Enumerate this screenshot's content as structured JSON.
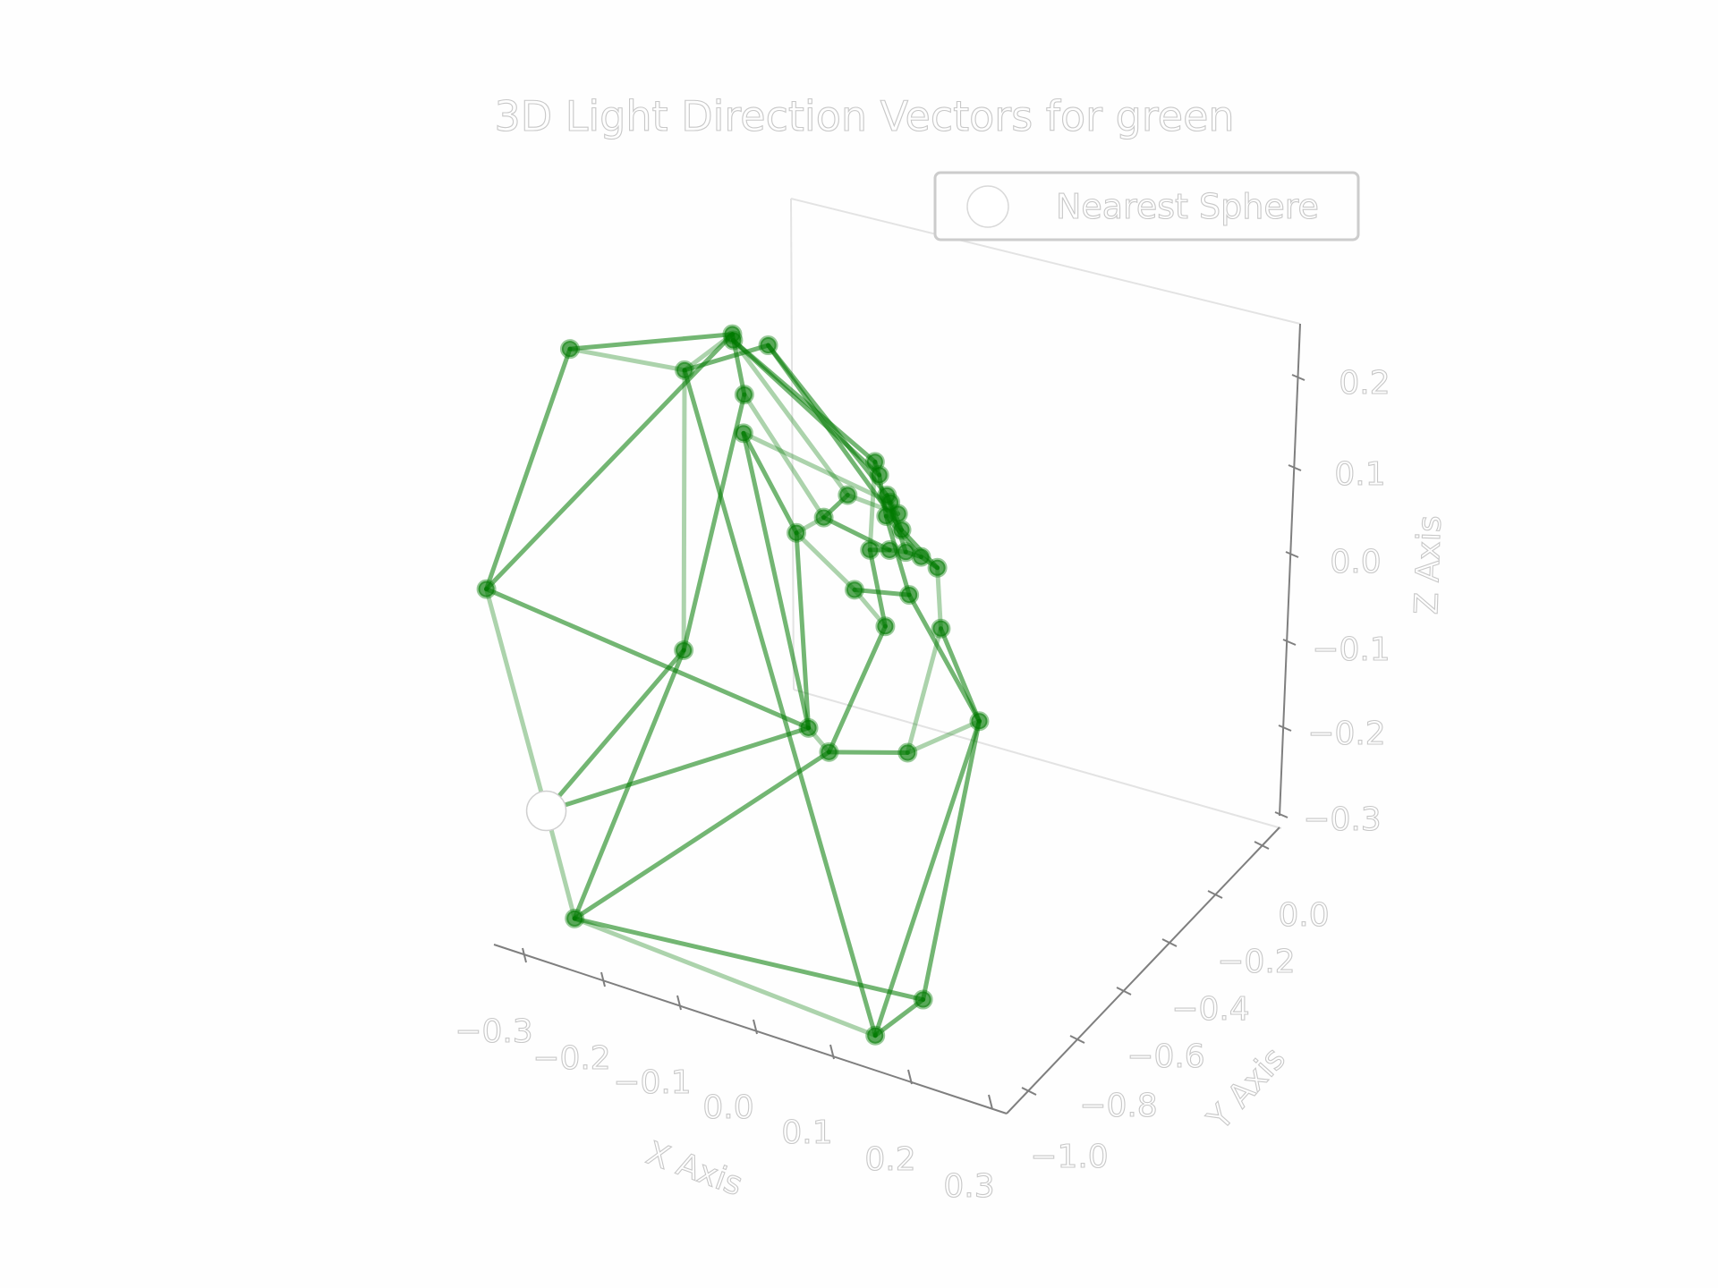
{
  "chart_data": {
    "type": "scatter3d",
    "title": "3D Light Direction Vectors for green",
    "xlabel": "X Axis",
    "ylabel": "Y Axis",
    "zlabel": "Z Axis",
    "xlim": [
      -0.35,
      0.35
    ],
    "ylim": [
      -1.05,
      0.1
    ],
    "zlim": [
      -0.32,
      0.26
    ],
    "x_ticks": [
      "−0.3",
      "−0.2",
      "−0.1",
      "0.0",
      "0.1",
      "0.2",
      "0.3"
    ],
    "y_ticks": [
      "0.0",
      "−0.2",
      "−0.4",
      "−0.6",
      "−0.8",
      "−1.0"
    ],
    "z_ticks": [
      "0.2",
      "0.1",
      "0.0",
      "−0.1",
      "−0.2",
      "−0.3"
    ],
    "legend": {
      "label": "Nearest Sphere",
      "placement": "top-right"
    },
    "colors": {
      "points": "#007a00",
      "highlight": "#ffffff",
      "text": "#c8c8c8",
      "pane": "#e6e6e6"
    },
    "nodes": [
      {
        "x": -0.28,
        "y": -0.48,
        "z": 0.22
      },
      {
        "x": -0.12,
        "y": -0.52,
        "z": 0.25
      },
      {
        "x": -0.08,
        "y": -0.44,
        "z": 0.28
      },
      {
        "x": -0.09,
        "y": -0.4,
        "z": 0.26
      },
      {
        "x": -0.05,
        "y": -0.38,
        "z": 0.26
      },
      {
        "x": -0.07,
        "y": -0.42,
        "z": 0.21
      },
      {
        "x": -0.06,
        "y": -0.46,
        "z": 0.18
      },
      {
        "x": -0.3,
        "y": -0.8,
        "z": 0.03
      },
      {
        "x": 0.05,
        "y": -0.24,
        "z": 0.12
      },
      {
        "x": 0.05,
        "y": -0.22,
        "z": 0.1
      },
      {
        "x": 0.06,
        "y": -0.22,
        "z": 0.08
      },
      {
        "x": 0.07,
        "y": -0.24,
        "z": 0.08
      },
      {
        "x": 0.07,
        "y": -0.26,
        "z": 0.07
      },
      {
        "x": 0.08,
        "y": -0.24,
        "z": 0.07
      },
      {
        "x": 0.09,
        "y": -0.26,
        "z": 0.06
      },
      {
        "x": 0.02,
        "y": -0.26,
        "z": 0.08
      },
      {
        "x": 0.0,
        "y": -0.3,
        "z": 0.06
      },
      {
        "x": -0.03,
        "y": -0.32,
        "z": 0.04
      },
      {
        "x": 0.06,
        "y": -0.3,
        "z": 0.04
      },
      {
        "x": 0.08,
        "y": -0.28,
        "z": 0.04
      },
      {
        "x": 0.09,
        "y": -0.24,
        "z": 0.03
      },
      {
        "x": 0.11,
        "y": -0.24,
        "z": 0.03
      },
      {
        "x": 0.12,
        "y": -0.2,
        "z": 0.01
      },
      {
        "x": 0.1,
        "y": -0.26,
        "z": -0.01
      },
      {
        "x": 0.04,
        "y": -0.3,
        "z": -0.01
      },
      {
        "x": 0.08,
        "y": -0.3,
        "z": -0.04
      },
      {
        "x": 0.13,
        "y": -0.22,
        "z": -0.05
      },
      {
        "x": -0.11,
        "y": -0.56,
        "z": -0.05
      },
      {
        "x": 0.03,
        "y": -0.48,
        "z": -0.12
      },
      {
        "x": 0.04,
        "y": -0.42,
        "z": -0.16
      },
      {
        "x": 0.12,
        "y": -0.34,
        "z": -0.16
      },
      {
        "x": 0.18,
        "y": -0.22,
        "z": -0.14
      },
      {
        "x": -0.13,
        "y": -1.0,
        "z": -0.24
      },
      {
        "x": 0.15,
        "y": -0.6,
        "z": -0.4
      },
      {
        "x": 0.19,
        "y": -0.52,
        "z": -0.37
      },
      {
        "x": -0.2,
        "y": -0.88,
        "z": -0.17
      }
    ],
    "edges": [
      [
        0,
        1
      ],
      [
        0,
        2
      ],
      [
        0,
        7
      ],
      [
        1,
        2
      ],
      [
        1,
        4
      ],
      [
        1,
        33
      ],
      [
        1,
        27
      ],
      [
        2,
        5
      ],
      [
        2,
        7
      ],
      [
        2,
        3
      ],
      [
        3,
        8
      ],
      [
        3,
        9
      ],
      [
        3,
        15
      ],
      [
        4,
        10
      ],
      [
        4,
        14
      ],
      [
        5,
        16
      ],
      [
        5,
        27
      ],
      [
        6,
        17
      ],
      [
        6,
        11
      ],
      [
        6,
        28
      ],
      [
        7,
        28
      ],
      [
        7,
        35
      ],
      [
        8,
        9
      ],
      [
        9,
        12
      ],
      [
        10,
        13
      ],
      [
        11,
        14
      ],
      [
        12,
        21
      ],
      [
        13,
        15
      ],
      [
        14,
        22
      ],
      [
        15,
        16
      ],
      [
        16,
        17
      ],
      [
        16,
        19
      ],
      [
        17,
        28
      ],
      [
        17,
        24
      ],
      [
        18,
        19
      ],
      [
        18,
        25
      ],
      [
        19,
        20
      ],
      [
        20,
        21
      ],
      [
        21,
        22
      ],
      [
        22,
        26
      ],
      [
        23,
        24
      ],
      [
        23,
        31
      ],
      [
        24,
        25
      ],
      [
        25,
        29
      ],
      [
        26,
        31
      ],
      [
        26,
        30
      ],
      [
        27,
        35
      ],
      [
        27,
        32
      ],
      [
        28,
        29
      ],
      [
        29,
        32
      ],
      [
        29,
        30
      ],
      [
        30,
        31
      ],
      [
        31,
        33
      ],
      [
        31,
        34
      ],
      [
        32,
        33
      ],
      [
        32,
        34
      ],
      [
        33,
        34
      ],
      [
        35,
        32
      ],
      [
        35,
        28
      ],
      [
        12,
        23
      ],
      [
        8,
        18
      ],
      [
        10,
        20
      ]
    ],
    "highlight_index": 35
  }
}
